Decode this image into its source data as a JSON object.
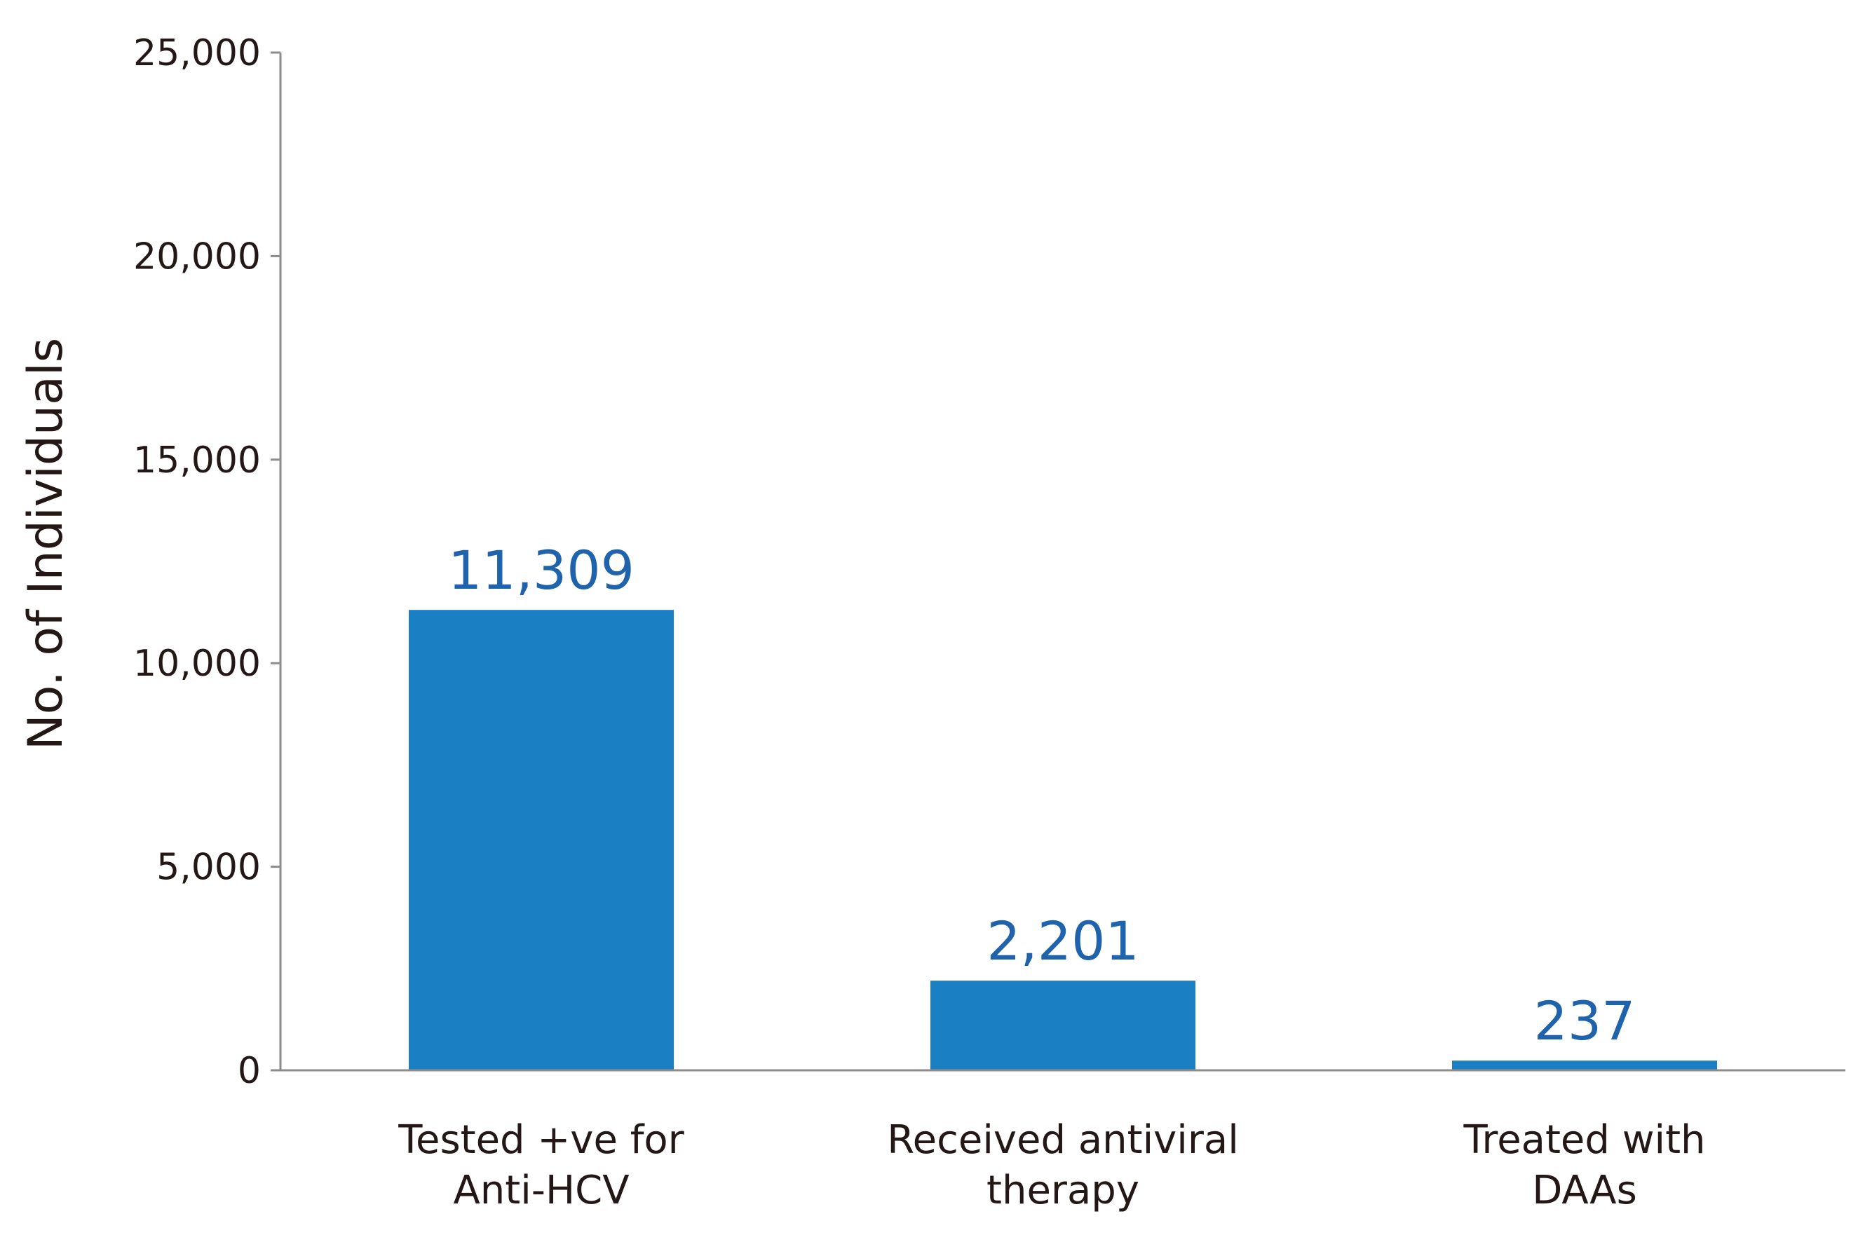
{
  "chart_data": {
    "type": "bar",
    "title": "",
    "xlabel": "",
    "ylabel": "No. of Individuals",
    "categories": [
      [
        "Tested +ve for",
        "Anti-HCV"
      ],
      [
        "Received antiviral",
        "therapy"
      ],
      [
        "Treated with",
        "DAAs"
      ]
    ],
    "values": [
      11309,
      2201,
      237
    ],
    "data_labels": [
      "11,309",
      "2,201",
      "237"
    ],
    "ylim": [
      0,
      25000
    ],
    "yticks": [
      0,
      5000,
      10000,
      15000,
      20000,
      25000
    ],
    "ytick_labels": [
      "0",
      "5,000",
      "10,000",
      "15,000",
      "20,000",
      "25,000"
    ],
    "grid": false,
    "legend": "none",
    "colors": {
      "bar": "#1b7fc4",
      "data_label": "#1f63ad",
      "axis": "#8c8c8c",
      "text": "#231815"
    }
  }
}
